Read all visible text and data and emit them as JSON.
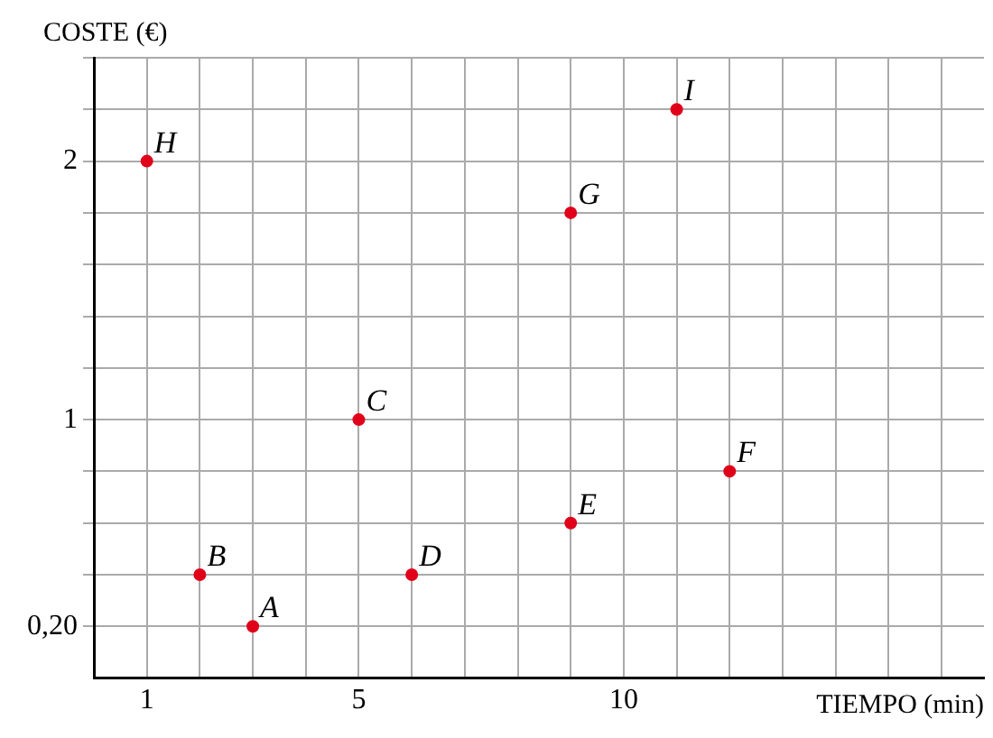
{
  "chart_data": {
    "type": "scatter",
    "xlabel": "TIEMPO (min)",
    "ylabel": "COSTE (€)",
    "x": [
      1,
      2,
      3,
      5,
      6,
      9,
      9,
      11,
      12
    ],
    "values": [
      2,
      0.4,
      0.2,
      1,
      0.4,
      0.6,
      1.8,
      2.2,
      0.8
    ],
    "color": "#e0001a",
    "marker": "circle",
    "grid": true,
    "legend": false,
    "xlim": [
      0,
      16.8
    ],
    "ylim": [
      0,
      2.4
    ],
    "xticks": [
      {
        "value": 1,
        "label": "1"
      },
      {
        "value": 2,
        "label": null
      },
      {
        "value": 3,
        "label": null
      },
      {
        "value": 4,
        "label": null
      },
      {
        "value": 5,
        "label": "5"
      },
      {
        "value": 6,
        "label": null
      },
      {
        "value": 7,
        "label": null
      },
      {
        "value": 8,
        "label": null
      },
      {
        "value": 9,
        "label": null
      },
      {
        "value": 10,
        "label": "10"
      },
      {
        "value": 11,
        "label": null
      },
      {
        "value": 12,
        "label": null
      },
      {
        "value": 13,
        "label": null
      },
      {
        "value": 14,
        "label": null
      },
      {
        "value": 15,
        "label": null
      },
      {
        "value": 16,
        "label": null
      }
    ],
    "yticks": [
      {
        "value": 0.2,
        "label": "0,20"
      },
      {
        "value": 0.4,
        "label": null
      },
      {
        "value": 0.6,
        "label": null
      },
      {
        "value": 0.8,
        "label": null
      },
      {
        "value": 1,
        "label": "1"
      },
      {
        "value": 1.2,
        "label": null
      },
      {
        "value": 1.4,
        "label": null
      },
      {
        "value": 1.6,
        "label": null
      },
      {
        "value": 1.8,
        "label": null
      },
      {
        "value": 2,
        "label": "2"
      },
      {
        "value": 2.2,
        "label": null
      },
      {
        "value": 2.4,
        "label": null
      }
    ],
    "annotations": [
      {
        "text": "H",
        "x": 1,
        "y": 2
      },
      {
        "text": "B",
        "x": 2,
        "y": 0.4
      },
      {
        "text": "A",
        "x": 3,
        "y": 0.2
      },
      {
        "text": "C",
        "x": 5,
        "y": 1
      },
      {
        "text": "D",
        "x": 6,
        "y": 0.4
      },
      {
        "text": "E",
        "x": 9,
        "y": 0.6
      },
      {
        "text": "G",
        "x": 9,
        "y": 1.8
      },
      {
        "text": "I",
        "x": 11,
        "y": 2.2
      },
      {
        "text": "F",
        "x": 12,
        "y": 0.8
      }
    ]
  }
}
